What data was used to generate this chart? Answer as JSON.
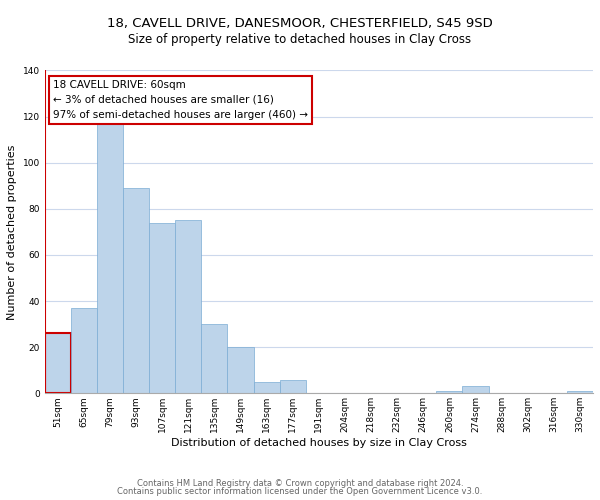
{
  "title_line1": "18, CAVELL DRIVE, DANESMOOR, CHESTERFIELD, S45 9SD",
  "title_line2": "Size of property relative to detached houses in Clay Cross",
  "xlabel": "Distribution of detached houses by size in Clay Cross",
  "ylabel": "Number of detached properties",
  "footnote1": "Contains HM Land Registry data © Crown copyright and database right 2024.",
  "footnote2": "Contains public sector information licensed under the Open Government Licence v3.0.",
  "bar_labels": [
    "51sqm",
    "65sqm",
    "79sqm",
    "93sqm",
    "107sqm",
    "121sqm",
    "135sqm",
    "149sqm",
    "163sqm",
    "177sqm",
    "191sqm",
    "204sqm",
    "218sqm",
    "232sqm",
    "246sqm",
    "260sqm",
    "274sqm",
    "288sqm",
    "302sqm",
    "316sqm",
    "330sqm"
  ],
  "bar_values": [
    26,
    37,
    118,
    89,
    74,
    75,
    30,
    20,
    5,
    6,
    0,
    0,
    0,
    0,
    0,
    1,
    3,
    0,
    0,
    0,
    1
  ],
  "bar_color": "#bdd4ea",
  "bar_edge_color": "#7bacd4",
  "highlight_bar_color": "#cc0000",
  "highlight_bar_index": 0,
  "ylim": [
    0,
    140
  ],
  "yticks": [
    0,
    20,
    40,
    60,
    80,
    100,
    120,
    140
  ],
  "annotation_text_line1": "18 CAVELL DRIVE: 60sqm",
  "annotation_text_line2": "← 3% of detached houses are smaller (16)",
  "annotation_text_line3": "97% of semi-detached houses are larger (460) →",
  "annotation_box_facecolor": "#ffffff",
  "annotation_box_edgecolor": "#cc0000",
  "background_color": "#ffffff",
  "grid_color": "#ccd8ec",
  "title_fontsize": 9.5,
  "subtitle_fontsize": 8.5,
  "xlabel_fontsize": 8,
  "ylabel_fontsize": 8,
  "tick_fontsize": 6.5,
  "annotation_fontsize": 7.5,
  "footnote_fontsize": 6,
  "footnote_color": "#666666"
}
